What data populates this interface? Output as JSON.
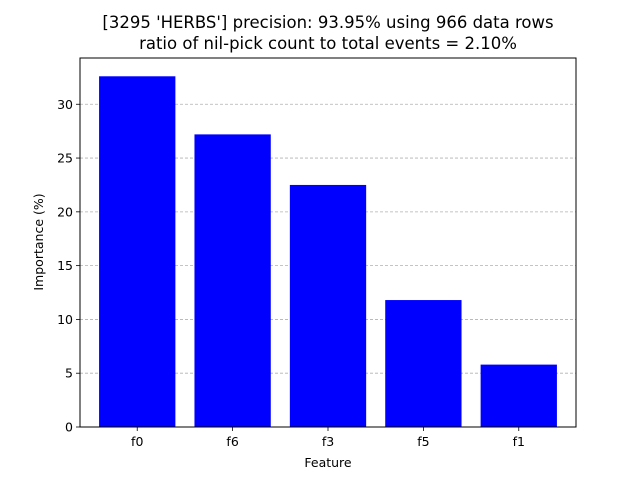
{
  "chart_data": {
    "type": "bar",
    "title": "[3295 'HERBS'] precision: 93.95% using 966 data rows",
    "subtitle": "ratio of nil-pick count to total events = 2.10%",
    "xlabel": "Feature",
    "ylabel": "Importance (%)",
    "categories": [
      "f0",
      "f6",
      "f3",
      "f5",
      "f1"
    ],
    "values": [
      32.6,
      27.2,
      22.5,
      11.8,
      5.8
    ],
    "ylim": [
      0,
      34.3
    ],
    "yticks": [
      0,
      5,
      10,
      15,
      20,
      25,
      30
    ],
    "grid": "y-dashed",
    "legend": "none",
    "bar_color": "#0000ff",
    "grid_color": "#b0b0b0"
  }
}
